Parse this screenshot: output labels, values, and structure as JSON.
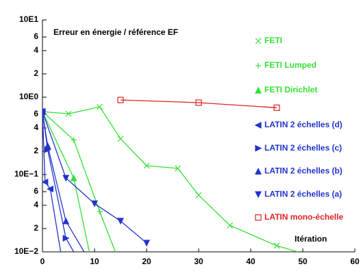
{
  "chart_data": {
    "type": "line",
    "title": "Erreur en énergie / référence EF",
    "xlabel": "Itération",
    "xlim": [
      0,
      60
    ],
    "xticks": [
      0,
      10,
      20,
      30,
      40,
      50,
      60
    ],
    "ylim": [
      0.01,
      10
    ],
    "yscale": "log",
    "yticks": [
      {
        "value": 10,
        "label": "10E1"
      },
      6,
      4,
      2,
      {
        "value": 1,
        "label": "10E0"
      },
      {
        "value": 0.6,
        "label": "6"
      },
      {
        "value": 0.4,
        "label": "4"
      },
      {
        "value": 0.2,
        "label": "2"
      },
      {
        "value": 0.1,
        "label": "10E−1"
      },
      {
        "value": 0.06,
        "label": "6"
      },
      {
        "value": 0.04,
        "label": "4"
      },
      {
        "value": 0.02,
        "label": "2"
      },
      {
        "value": 0.01,
        "label": "10E−2"
      }
    ],
    "legend": "right",
    "series": [
      {
        "name": "FETI",
        "color": "#33e033",
        "marker": "x",
        "x": [
          0,
          5,
          11,
          15,
          20,
          26,
          30,
          36,
          45,
          49
        ],
        "values": [
          0.65,
          0.61,
          0.75,
          0.29,
          0.13,
          0.12,
          0.054,
          0.022,
          0.012,
          0.01
        ]
      },
      {
        "name": "FETI Lumped",
        "color": "#33e033",
        "marker": "+",
        "x": [
          0,
          6,
          11,
          14
        ],
        "values": [
          0.65,
          0.28,
          0.033,
          0.01
        ]
      },
      {
        "name": "FETI Dirichlet",
        "color": "#33e033",
        "marker": "triangle-up",
        "x": [
          0,
          6,
          9
        ],
        "values": [
          0.65,
          0.09,
          0.01
        ]
      },
      {
        "name": "LATIN 2 échelles (d)",
        "color": "#2233cc",
        "marker": "triangle-left",
        "x": [
          0,
          0.5,
          1.5,
          3.5
        ],
        "values": [
          0.65,
          0.08,
          0.065,
          0.01
        ]
      },
      {
        "name": "LATIN 2 échelles (c)",
        "color": "#2233cc",
        "marker": "triangle-right",
        "x": [
          0,
          1,
          4.5,
          6
        ],
        "values": [
          0.65,
          0.21,
          0.015,
          0.01
        ]
      },
      {
        "name": "LATIN 2 échelles (b)",
        "color": "#2233cc",
        "marker": "triangle-up",
        "x": [
          0,
          1,
          4.5,
          8
        ],
        "values": [
          0.65,
          0.235,
          0.025,
          0.01
        ]
      },
      {
        "name": "LATIN 2 échelles (a)",
        "color": "#2233cc",
        "marker": "triangle-down",
        "x": [
          0,
          4.5,
          10,
          15,
          20
        ],
        "values": [
          0.65,
          0.09,
          0.042,
          0.025,
          0.013
        ]
      },
      {
        "name": "LATIN mono-échelle",
        "color": "#dd2222",
        "marker": "square",
        "x": [
          15,
          30,
          45
        ],
        "values": [
          0.92,
          0.85,
          0.73
        ]
      }
    ]
  }
}
